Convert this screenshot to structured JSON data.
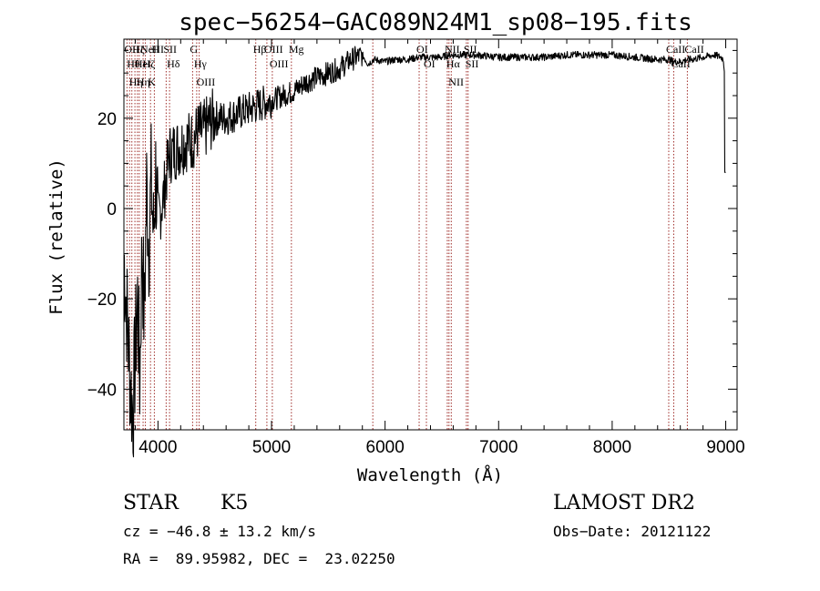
{
  "chart_data": {
    "type": "line",
    "title": "spec−56254−GAC089N24M1_sp08−195.fits",
    "xlabel": "Wavelength (Å)",
    "ylabel": "Flux (relative)",
    "xlim": [
      3700,
      9100
    ],
    "ylim": [
      -49,
      37.5
    ],
    "xticks": [
      4000,
      5000,
      6000,
      7000,
      8000,
      9000
    ],
    "yticks": [
      -40,
      -20,
      0,
      20
    ],
    "series": [
      {
        "x": [
          3700,
          3720,
          3740,
          3760,
          3780,
          3800,
          3820,
          3840,
          3860,
          3880,
          3900,
          3920,
          3940,
          3960,
          3980,
          4000,
          4050,
          4100,
          4150,
          4200,
          4250,
          4300,
          4350,
          4400,
          4450,
          4500,
          4600,
          4700,
          4800,
          4900,
          5000,
          5100,
          5200,
          5300,
          5400,
          5500,
          5600,
          5700,
          5800,
          5850,
          5900,
          6000,
          6100,
          6200,
          6300,
          6400,
          6500,
          6560,
          6600,
          6700,
          6800,
          7000,
          7200,
          7400,
          7600,
          7800,
          8000,
          8200,
          8400,
          8500,
          8540,
          8600,
          8660,
          8700,
          8800,
          8900,
          8960,
          8980,
          8990,
          9000
        ],
        "y": [
          -10,
          -20,
          -30,
          -40,
          -45,
          -32,
          -20,
          -38,
          -8,
          -25,
          5,
          -8,
          6,
          -6,
          8,
          -3,
          3,
          12,
          13,
          14,
          15,
          15,
          17,
          17,
          19,
          20,
          20,
          21,
          22,
          23,
          24,
          25,
          26,
          28,
          29,
          30,
          31,
          33,
          34,
          32,
          33,
          32.5,
          33,
          33,
          33.5,
          33.5,
          33.5,
          34,
          34,
          34,
          34,
          33.5,
          33.5,
          33.5,
          34,
          34,
          34,
          33.5,
          33,
          33,
          32.5,
          32.5,
          33,
          33,
          33.5,
          34,
          33.5,
          33,
          30,
          8
        ]
      }
    ],
    "lines": [
      {
        "x": 3727,
        "name": "OII"
      },
      {
        "x": 3750,
        "name": "Hθ"
      },
      {
        "x": 3770,
        "name": "Hη"
      },
      {
        "x": 3797,
        "name": "Hζ"
      },
      {
        "x": 3819,
        "name": "HeI"
      },
      {
        "x": 3835,
        "name": "Hη"
      },
      {
        "x": 3869,
        "name": "NeIII"
      },
      {
        "x": 3889,
        "name": "Hζ"
      },
      {
        "x": 3934,
        "name": "K"
      },
      {
        "x": 3968,
        "name": "H"
      },
      {
        "x": 4072,
        "name": "SII"
      },
      {
        "x": 4102,
        "name": "Hδ"
      },
      {
        "x": 4305,
        "name": "G"
      },
      {
        "x": 4341,
        "name": "Hγ"
      },
      {
        "x": 4363,
        "name": "OIII"
      },
      {
        "x": 4861,
        "name": "Hβ"
      },
      {
        "x": 4959,
        "name": "OIII"
      },
      {
        "x": 5007,
        "name": "OIII"
      },
      {
        "x": 5175,
        "name": "Mg"
      },
      {
        "x": 5892,
        "name": ""
      },
      {
        "x": 6300,
        "name": "OI"
      },
      {
        "x": 6364,
        "name": "OI"
      },
      {
        "x": 6548,
        "name": "NII"
      },
      {
        "x": 6563,
        "name": "Hα"
      },
      {
        "x": 6583,
        "name": "NII"
      },
      {
        "x": 6716,
        "name": "SII"
      },
      {
        "x": 6731,
        "name": "SII"
      },
      {
        "x": 8498,
        "name": "CaII"
      },
      {
        "x": 8542,
        "name": "CaII"
      },
      {
        "x": 8662,
        "name": "CaII"
      }
    ],
    "line_color": "#a0302c"
  },
  "info": {
    "object_class": "STAR",
    "subclass": "K5",
    "survey": "LAMOST DR2",
    "cz": "cz = −46.8 ± 13.2 km/s",
    "obs_date": "Obs−Date: 20121122",
    "coords": "RA =  89.95982, DEC =  23.02250"
  }
}
